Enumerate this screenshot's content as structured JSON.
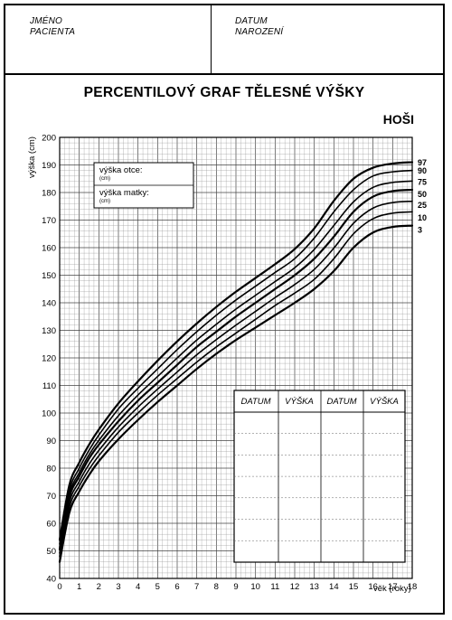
{
  "header": {
    "name_label_1": "JMÉNO",
    "name_label_2": "PACIENTA",
    "dob_label_1": "DATUM",
    "dob_label_2": "NAROZENÍ"
  },
  "title": "PERCENTILOVÝ GRAF TĚLESNÉ VÝŠKY",
  "subtitle": "HOŠI",
  "parents_box": {
    "father_label": "výška otce:",
    "father_unit": "(cm)",
    "mother_label": "výška matky:",
    "mother_unit": "(cm)"
  },
  "record_table": {
    "headers": [
      "DATUM",
      "VÝŠKA",
      "DATUM",
      "VÝŠKA"
    ]
  },
  "chart_data": {
    "type": "line",
    "title": "PERCENTILOVÝ GRAF TĚLESNÉ VÝŠKY",
    "subtitle": "HOŠI",
    "xlabel": "věk (roky)",
    "ylabel": "výška (cm)",
    "xlim": [
      0,
      18
    ],
    "ylim": [
      40,
      200
    ],
    "x_ticks": [
      0,
      1,
      2,
      3,
      4,
      5,
      6,
      7,
      8,
      9,
      10,
      11,
      12,
      13,
      14,
      15,
      16,
      17,
      18
    ],
    "y_ticks": [
      40,
      50,
      60,
      70,
      80,
      90,
      100,
      110,
      120,
      130,
      140,
      150,
      160,
      170,
      180,
      190,
      200
    ],
    "grid": true,
    "x": [
      0,
      0.5,
      1,
      1.5,
      2,
      3,
      4,
      5,
      6,
      7,
      8,
      9,
      10,
      11,
      12,
      13,
      14,
      15,
      16,
      17,
      18
    ],
    "series": [
      {
        "name": "97",
        "values": [
          54,
          74,
          82,
          88.5,
          94,
          103.5,
          111.5,
          119,
          126,
          132.5,
          138.5,
          144,
          149,
          154,
          159.5,
          167,
          177,
          185,
          189,
          190.5,
          191
        ]
      },
      {
        "name": "90",
        "values": [
          52.5,
          72,
          80,
          86.5,
          92,
          101.5,
          109,
          116,
          123,
          129.5,
          135.5,
          141,
          146,
          151,
          156,
          163.5,
          173,
          181,
          186,
          187.5,
          188
        ]
      },
      {
        "name": "75",
        "values": null
      },
      {
        "name": "50",
        "values": [
          50.5,
          69.5,
          77,
          83.5,
          88.5,
          97,
          104.5,
          111,
          117.5,
          124,
          129.5,
          135,
          140,
          145,
          150,
          156,
          164,
          173,
          178.5,
          180.5,
          181
        ]
      },
      {
        "name": "25",
        "values": null
      },
      {
        "name": "10",
        "values": [
          48,
          66,
          73.5,
          79.5,
          84.5,
          93,
          100,
          106.5,
          112.5,
          118.5,
          124,
          129,
          134,
          139,
          143.5,
          148.5,
          156,
          165,
          170.5,
          172.5,
          173
        ]
      },
      {
        "name": "3",
        "values": [
          46,
          64,
          71.5,
          77.5,
          82.5,
          90.5,
          97.5,
          104,
          110,
          116,
          121.5,
          126.5,
          131,
          135.5,
          140,
          145,
          151.5,
          160,
          165.5,
          167.5,
          168
        ]
      }
    ],
    "label_y_positions": {
      "97": 191,
      "90": 188,
      "75": 184,
      "50": 179.5,
      "25": 175.5,
      "10": 171,
      "3": 166.5
    }
  }
}
